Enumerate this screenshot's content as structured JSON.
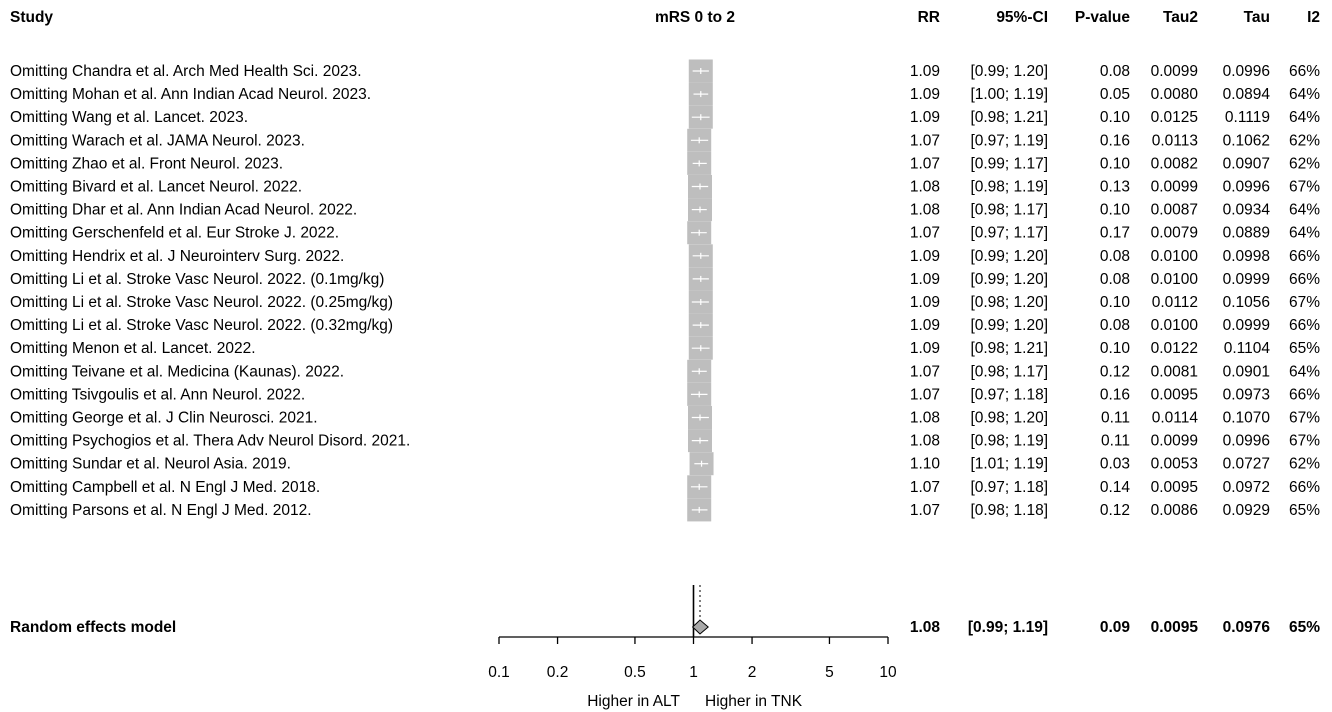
{
  "headers": {
    "study": "Study",
    "outcome": "mRS 0 to 2",
    "rr": "RR",
    "ci": "95%-CI",
    "pvalue": "P-value",
    "tau2": "Tau2",
    "tau": "Tau",
    "i2": "I2"
  },
  "axis_label_left": "Higher in ALT",
  "axis_label_right": "Higher in TNK",
  "colors": {
    "box": "#bebebe",
    "diamond": "#a9a9a9",
    "line": "#000000"
  },
  "chart_data": {
    "type": "forest",
    "scale": "log",
    "xlim": [
      0.1,
      10
    ],
    "ticks": [
      0.1,
      0.2,
      0.5,
      1,
      2,
      5,
      10
    ],
    "tick_labels": [
      "0.1",
      "0.2",
      "0.5",
      "1",
      "2",
      "5",
      "10"
    ],
    "reference_line": 1,
    "studies": [
      {
        "label": "Omitting Chandra et al. Arch Med Health Sci. 2023.",
        "rr": 1.09,
        "lo": 0.99,
        "hi": 1.2,
        "rr_text": "1.09",
        "ci_text": "[0.99; 1.20]",
        "p_text": "0.08",
        "tau2_text": "0.0099",
        "tau_text": "0.0996",
        "i2_text": "66%"
      },
      {
        "label": "Omitting Mohan et al. Ann Indian Acad Neurol. 2023.",
        "rr": 1.09,
        "lo": 1.0,
        "hi": 1.19,
        "rr_text": "1.09",
        "ci_text": "[1.00; 1.19]",
        "p_text": "0.05",
        "tau2_text": "0.0080",
        "tau_text": "0.0894",
        "i2_text": "64%"
      },
      {
        "label": "Omitting Wang et al. Lancet. 2023.",
        "rr": 1.09,
        "lo": 0.98,
        "hi": 1.21,
        "rr_text": "1.09",
        "ci_text": "[0.98; 1.21]",
        "p_text": "0.10",
        "tau2_text": "0.0125",
        "tau_text": "0.1119",
        "i2_text": "64%"
      },
      {
        "label": "Omitting Warach et al. JAMA Neurol. 2023.",
        "rr": 1.07,
        "lo": 0.97,
        "hi": 1.19,
        "rr_text": "1.07",
        "ci_text": "[0.97; 1.19]",
        "p_text": "0.16",
        "tau2_text": "0.0113",
        "tau_text": "0.1062",
        "i2_text": "62%"
      },
      {
        "label": "Omitting Zhao et al. Front Neurol. 2023.",
        "rr": 1.07,
        "lo": 0.99,
        "hi": 1.17,
        "rr_text": "1.07",
        "ci_text": "[0.99; 1.17]",
        "p_text": "0.10",
        "tau2_text": "0.0082",
        "tau_text": "0.0907",
        "i2_text": "62%"
      },
      {
        "label": "Omitting Bivard et al. Lancet Neurol. 2022.",
        "rr": 1.08,
        "lo": 0.98,
        "hi": 1.19,
        "rr_text": "1.08",
        "ci_text": "[0.98; 1.19]",
        "p_text": "0.13",
        "tau2_text": "0.0099",
        "tau_text": "0.0996",
        "i2_text": "67%"
      },
      {
        "label": "Omitting Dhar et al. Ann Indian Acad Neurol. 2022.",
        "rr": 1.08,
        "lo": 0.98,
        "hi": 1.17,
        "rr_text": "1.08",
        "ci_text": "[0.98; 1.17]",
        "p_text": "0.10",
        "tau2_text": "0.0087",
        "tau_text": "0.0934",
        "i2_text": "64%"
      },
      {
        "label": "Omitting Gerschenfeld et al. Eur Stroke J. 2022.",
        "rr": 1.07,
        "lo": 0.97,
        "hi": 1.17,
        "rr_text": "1.07",
        "ci_text": "[0.97; 1.17]",
        "p_text": "0.17",
        "tau2_text": "0.0079",
        "tau_text": "0.0889",
        "i2_text": "64%"
      },
      {
        "label": "Omitting Hendrix et al. J Neurointerv Surg. 2022.",
        "rr": 1.09,
        "lo": 0.99,
        "hi": 1.2,
        "rr_text": "1.09",
        "ci_text": "[0.99; 1.20]",
        "p_text": "0.08",
        "tau2_text": "0.0100",
        "tau_text": "0.0998",
        "i2_text": "66%"
      },
      {
        "label": "Omitting Li et al. Stroke Vasc Neurol. 2022. (0.1mg/kg)",
        "rr": 1.09,
        "lo": 0.99,
        "hi": 1.2,
        "rr_text": "1.09",
        "ci_text": "[0.99; 1.20]",
        "p_text": "0.08",
        "tau2_text": "0.0100",
        "tau_text": "0.0999",
        "i2_text": "66%"
      },
      {
        "label": "Omitting Li et al. Stroke Vasc Neurol. 2022. (0.25mg/kg)",
        "rr": 1.09,
        "lo": 0.98,
        "hi": 1.2,
        "rr_text": "1.09",
        "ci_text": "[0.98; 1.20]",
        "p_text": "0.10",
        "tau2_text": "0.0112",
        "tau_text": "0.1056",
        "i2_text": "67%"
      },
      {
        "label": "Omitting Li et al. Stroke Vasc Neurol. 2022. (0.32mg/kg)",
        "rr": 1.09,
        "lo": 0.99,
        "hi": 1.2,
        "rr_text": "1.09",
        "ci_text": "[0.99; 1.20]",
        "p_text": "0.08",
        "tau2_text": "0.0100",
        "tau_text": "0.0999",
        "i2_text": "66%"
      },
      {
        "label": "Omitting Menon et al. Lancet. 2022.",
        "rr": 1.09,
        "lo": 0.98,
        "hi": 1.21,
        "rr_text": "1.09",
        "ci_text": "[0.98; 1.21]",
        "p_text": "0.10",
        "tau2_text": "0.0122",
        "tau_text": "0.1104",
        "i2_text": "65%"
      },
      {
        "label": "Omitting Teivane et al. Medicina (Kaunas). 2022.",
        "rr": 1.07,
        "lo": 0.98,
        "hi": 1.17,
        "rr_text": "1.07",
        "ci_text": "[0.98; 1.17]",
        "p_text": "0.12",
        "tau2_text": "0.0081",
        "tau_text": "0.0901",
        "i2_text": "64%"
      },
      {
        "label": "Omitting Tsivgoulis et al. Ann Neurol. 2022.",
        "rr": 1.07,
        "lo": 0.97,
        "hi": 1.18,
        "rr_text": "1.07",
        "ci_text": "[0.97; 1.18]",
        "p_text": "0.16",
        "tau2_text": "0.0095",
        "tau_text": "0.0973",
        "i2_text": "66%"
      },
      {
        "label": "Omitting George et al. J Clin Neurosci. 2021.",
        "rr": 1.08,
        "lo": 0.98,
        "hi": 1.2,
        "rr_text": "1.08",
        "ci_text": "[0.98; 1.20]",
        "p_text": "0.11",
        "tau2_text": "0.0114",
        "tau_text": "0.1070",
        "i2_text": "67%"
      },
      {
        "label": "Omitting Psychogios et al. Thera Adv Neurol Disord. 2021.",
        "rr": 1.08,
        "lo": 0.98,
        "hi": 1.19,
        "rr_text": "1.08",
        "ci_text": "[0.98; 1.19]",
        "p_text": "0.11",
        "tau2_text": "0.0099",
        "tau_text": "0.0996",
        "i2_text": "67%"
      },
      {
        "label": "Omitting Sundar et al. Neurol Asia. 2019.",
        "rr": 1.1,
        "lo": 1.01,
        "hi": 1.19,
        "rr_text": "1.10",
        "ci_text": "[1.01; 1.19]",
        "p_text": "0.03",
        "tau2_text": "0.0053",
        "tau_text": "0.0727",
        "i2_text": "62%"
      },
      {
        "label": "Omitting Campbell et al. N Engl J Med. 2018.",
        "rr": 1.07,
        "lo": 0.97,
        "hi": 1.18,
        "rr_text": "1.07",
        "ci_text": "[0.97; 1.18]",
        "p_text": "0.14",
        "tau2_text": "0.0095",
        "tau_text": "0.0972",
        "i2_text": "66%"
      },
      {
        "label": "Omitting Parsons et al. N Engl J Med. 2012.",
        "rr": 1.07,
        "lo": 0.98,
        "hi": 1.18,
        "rr_text": "1.07",
        "ci_text": "[0.98; 1.18]",
        "p_text": "0.12",
        "tau2_text": "0.0086",
        "tau_text": "0.0929",
        "i2_text": "65%"
      }
    ],
    "pooled": {
      "label": "Random effects model",
      "rr": 1.08,
      "lo": 0.99,
      "hi": 1.19,
      "rr_text": "1.08",
      "ci_text": "[0.99; 1.19]",
      "p_text": "0.09",
      "tau2_text": "0.0095",
      "tau_text": "0.0976",
      "i2_text": "65%"
    }
  }
}
